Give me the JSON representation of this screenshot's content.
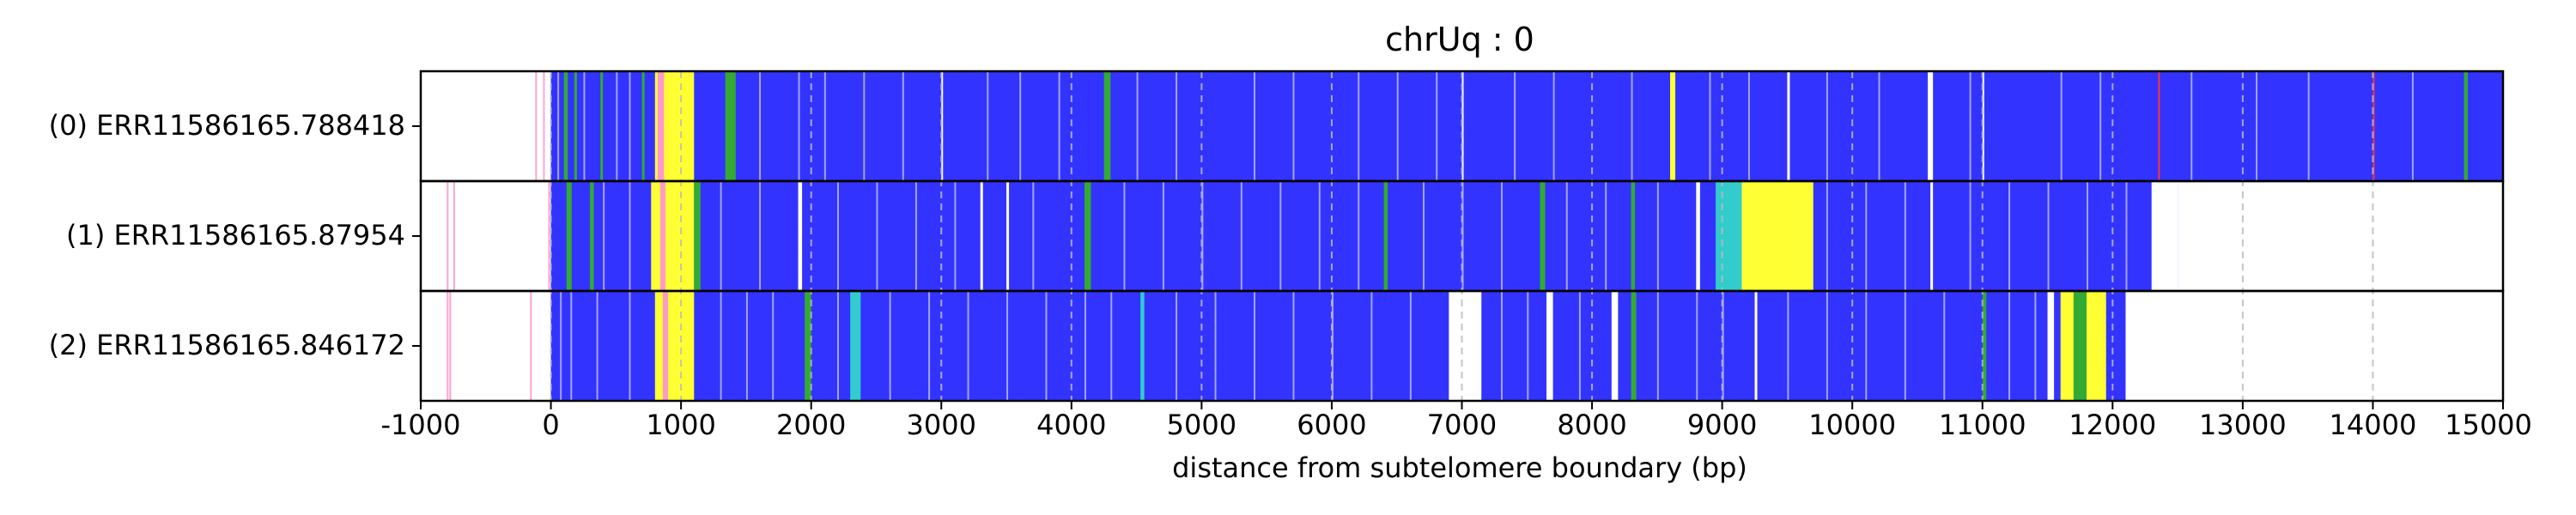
{
  "colors": {
    "base": "#3333ff",
    "yellow": "#ffff33",
    "green": "#33aa33",
    "cyan": "#33cccc",
    "white": "#ffffff",
    "pink": "#ff99cc",
    "red": "#ff3333",
    "grid": "#bbbbbb"
  },
  "chart_data": {
    "type": "heatmap",
    "title": "chrUq : 0",
    "xlabel": "distance from subtelomere boundary (bp)",
    "ylabel": "",
    "xlim": [
      -1000,
      15000
    ],
    "x_ticks": [
      -1000,
      0,
      1000,
      2000,
      3000,
      4000,
      5000,
      6000,
      7000,
      8000,
      9000,
      10000,
      11000,
      12000,
      13000,
      14000,
      15000
    ],
    "grid": "vertical dashed",
    "reads": [
      {
        "label": "(0) ERR11586165.788418",
        "start": 0,
        "end": 15000,
        "segments": [
          [
            800,
            1100,
            "yellow"
          ],
          [
            820,
            870,
            "pink"
          ],
          [
            1340,
            1420,
            "green"
          ],
          [
            100,
            130,
            "green"
          ],
          [
            180,
            200,
            "green"
          ],
          [
            380,
            400,
            "green"
          ],
          [
            700,
            720,
            "green"
          ],
          [
            3000,
            3010,
            "white"
          ],
          [
            4250,
            4300,
            "green"
          ],
          [
            7000,
            7010,
            "white"
          ],
          [
            8600,
            8640,
            "yellow"
          ],
          [
            9500,
            9520,
            "white"
          ],
          [
            10580,
            10620,
            "white"
          ],
          [
            11000,
            11010,
            "white"
          ],
          [
            12350,
            12360,
            "red"
          ],
          [
            14000,
            14010,
            "red"
          ],
          [
            14700,
            14730,
            "green"
          ]
        ],
        "lines": [
          -120,
          -60,
          50,
          250,
          500,
          600,
          1600,
          1900,
          2100,
          2400,
          2700,
          3350,
          3600,
          3900,
          4500,
          4800,
          5400,
          5700,
          6200,
          6500,
          6800,
          7400,
          7700,
          8300,
          8900,
          9200,
          9800,
          10200,
          10900,
          11600,
          11900,
          12600,
          13100,
          13500,
          14300
        ]
      },
      {
        "label": "(1) ERR11586165.87954",
        "start": 0,
        "end": 12500,
        "segments": [
          [
            770,
            1100,
            "yellow"
          ],
          [
            840,
            880,
            "pink"
          ],
          [
            1100,
            1150,
            "green"
          ],
          [
            120,
            160,
            "green"
          ],
          [
            300,
            330,
            "green"
          ],
          [
            1900,
            1930,
            "white"
          ],
          [
            3300,
            3320,
            "white"
          ],
          [
            3500,
            3520,
            "white"
          ],
          [
            4100,
            4150,
            "green"
          ],
          [
            6400,
            6430,
            "green"
          ],
          [
            7600,
            7640,
            "green"
          ],
          [
            8300,
            8330,
            "green"
          ],
          [
            8800,
            8830,
            "white"
          ],
          [
            8950,
            9150,
            "cyan"
          ],
          [
            9150,
            9700,
            "yellow"
          ],
          [
            10600,
            10620,
            "white"
          ],
          [
            12300,
            12500,
            "white"
          ]
        ],
        "lines": [
          -800,
          -750,
          -20,
          400,
          600,
          1300,
          1600,
          2200,
          2500,
          2800,
          3100,
          3700,
          4400,
          4700,
          5000,
          5300,
          5600,
          5900,
          6200,
          6700,
          7000,
          7300,
          7800,
          8100,
          8500,
          9800,
          10100,
          10400,
          10900,
          11200,
          11500,
          11800,
          12100,
          12300,
          12400
        ]
      },
      {
        "label": "(2) ERR11586165.846172",
        "start": 0,
        "end": 12100,
        "segments": [
          [
            800,
            1100,
            "yellow"
          ],
          [
            860,
            900,
            "pink"
          ],
          [
            1950,
            2000,
            "green"
          ],
          [
            2300,
            2380,
            "cyan"
          ],
          [
            4530,
            4560,
            "cyan"
          ],
          [
            6900,
            7150,
            "white"
          ],
          [
            7650,
            7700,
            "white"
          ],
          [
            8150,
            8200,
            "white"
          ],
          [
            8300,
            8340,
            "green"
          ],
          [
            9250,
            9270,
            "white"
          ],
          [
            11000,
            11030,
            "green"
          ],
          [
            11500,
            11550,
            "white"
          ],
          [
            11600,
            11950,
            "yellow"
          ],
          [
            11700,
            11800,
            "green"
          ]
        ],
        "lines": [
          -800,
          -780,
          -160,
          70,
          150,
          350,
          600,
          1300,
          1500,
          1700,
          2200,
          2600,
          2900,
          3200,
          3500,
          3800,
          4100,
          4300,
          4800,
          5100,
          5400,
          5700,
          6000,
          6300,
          6600,
          7300,
          7500,
          7900,
          8500,
          8800,
          9000,
          9500,
          9800,
          10100,
          10400,
          10700,
          11200,
          11400
        ]
      }
    ]
  }
}
